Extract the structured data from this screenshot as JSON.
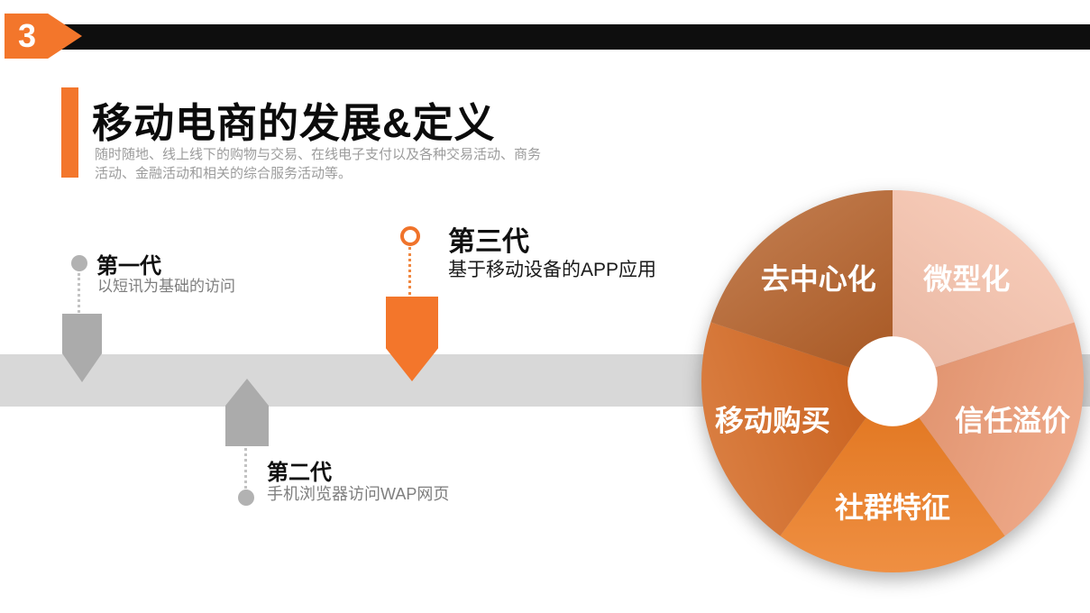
{
  "slide": {
    "page_number": "3",
    "accent_color": "#f3762b",
    "title": "移动电商的发展&定义",
    "subtitle_lines": [
      "随时随地、线上线下的购物与交易、在线电子支付以及各种交易活动、商务",
      "活动、金融活动和相关的综合服务活动等。"
    ]
  },
  "timeline": {
    "generations": [
      {
        "name": "第一代",
        "desc": "以短讯为基础的访问"
      },
      {
        "name": "第二代",
        "desc": "手机浏览器访问WAP网页"
      },
      {
        "name": "第三代",
        "desc": "基于移动设备的APP应用"
      }
    ]
  },
  "chart_data": {
    "type": "pie",
    "title": "",
    "legend_position": "none",
    "donut_hole_ratio": 0.235,
    "start_angle_deg": 0,
    "clockwise": true,
    "label_color": "#ffffff",
    "segments": [
      {
        "label": "微型化",
        "value": 20,
        "color": "#f4c0a9"
      },
      {
        "label": "信任溢价",
        "value": 20,
        "color": "#eb9972"
      },
      {
        "label": "社群特征",
        "value": 20,
        "color": "#ec7a1e"
      },
      {
        "label": "移动购买",
        "value": 20,
        "color": "#d2641c"
      },
      {
        "label": "去中心化",
        "value": 20,
        "color": "#b05c24"
      }
    ]
  }
}
